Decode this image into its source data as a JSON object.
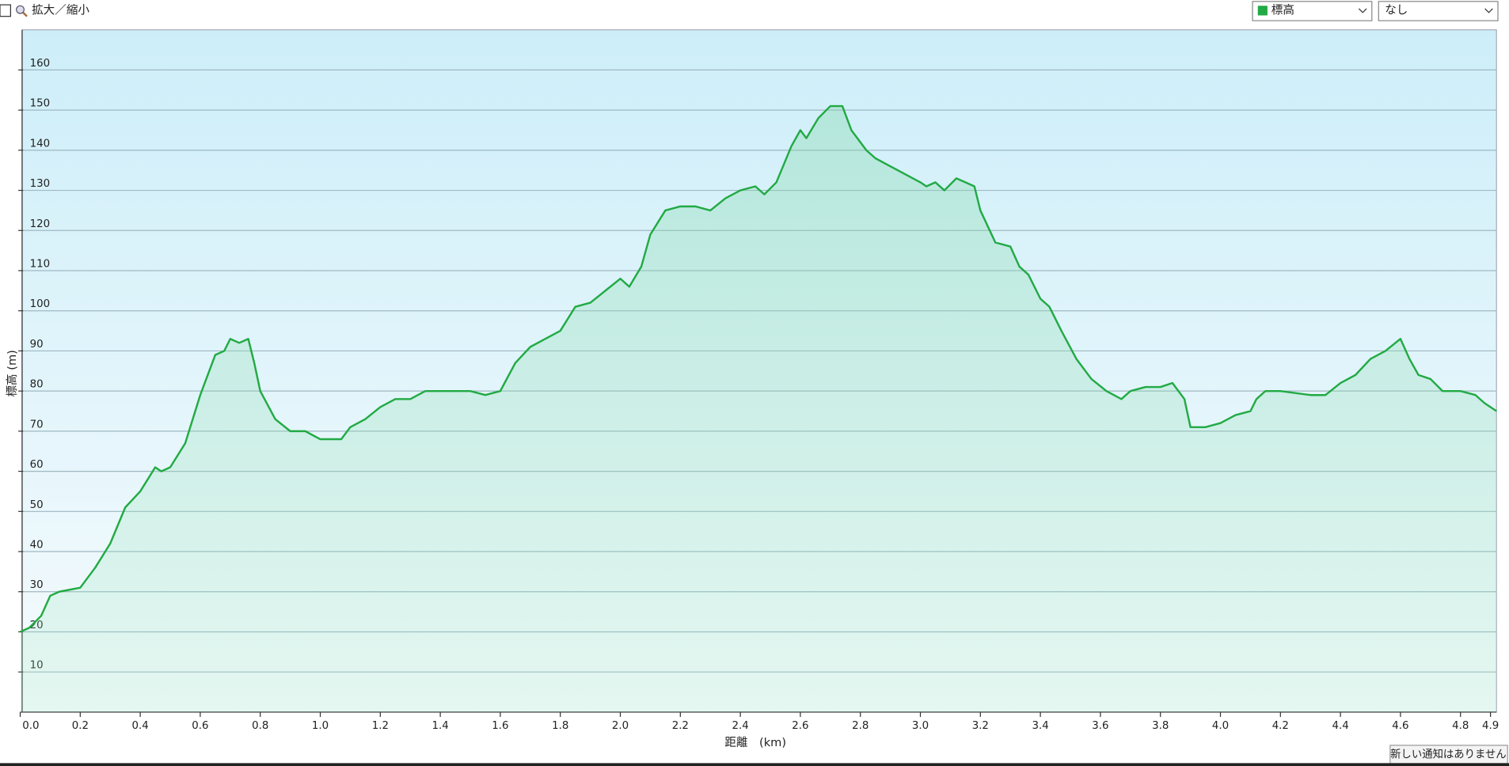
{
  "controls": {
    "zoom_label": "拡大／縮小",
    "overlay_select": "なし"
  },
  "notification": "新しい通知はありません",
  "chart_data": {
    "type": "area",
    "xlabel": "距離　(km)",
    "ylabel": "標高 (m)",
    "xlim": [
      0,
      4.92
    ],
    "ylim": [
      0,
      170
    ],
    "xticks": [
      {
        "value": 0,
        "label": "0.0"
      },
      0.2,
      0.4,
      0.6,
      0.8,
      {
        "value": 1,
        "label": "1.0"
      },
      1.2,
      1.4,
      1.6,
      1.8,
      {
        "value": 2,
        "label": "2.0"
      },
      2.2,
      2.4,
      2.6,
      2.8,
      {
        "value": 3,
        "label": "3.0"
      },
      3.2,
      3.4,
      3.6,
      3.8,
      {
        "value": 4,
        "label": "4.0"
      },
      4.2,
      4.4,
      4.6,
      4.8,
      4.9
    ],
    "yticks": [
      10,
      20,
      30,
      40,
      50,
      60,
      70,
      80,
      90,
      100,
      110,
      120,
      130,
      140,
      150,
      160
    ],
    "grid": true,
    "x": [
      0,
      0.03,
      0.07,
      0.1,
      0.13,
      0.2,
      0.25,
      0.3,
      0.35,
      0.4,
      0.45,
      0.47,
      0.5,
      0.55,
      0.6,
      0.63,
      0.65,
      0.68,
      0.7,
      0.73,
      0.76,
      0.78,
      0.8,
      0.85,
      0.9,
      0.95,
      1.0,
      1.07,
      1.1,
      1.15,
      1.2,
      1.25,
      1.3,
      1.35,
      1.4,
      1.45,
      1.5,
      1.55,
      1.6,
      1.65,
      1.7,
      1.75,
      1.8,
      1.85,
      1.9,
      1.95,
      2.0,
      2.03,
      2.07,
      2.1,
      2.15,
      2.2,
      2.25,
      2.3,
      2.35,
      2.4,
      2.45,
      2.48,
      2.52,
      2.57,
      2.6,
      2.62,
      2.66,
      2.7,
      2.74,
      2.77,
      2.82,
      2.85,
      2.9,
      2.95,
      3.0,
      3.02,
      3.05,
      3.08,
      3.12,
      3.15,
      3.18,
      3.2,
      3.25,
      3.3,
      3.33,
      3.36,
      3.4,
      3.43,
      3.47,
      3.52,
      3.57,
      3.62,
      3.67,
      3.7,
      3.75,
      3.8,
      3.84,
      3.88,
      3.9,
      3.95,
      4.0,
      4.05,
      4.1,
      4.12,
      4.15,
      4.2,
      4.3,
      4.35,
      4.4,
      4.45,
      4.5,
      4.55,
      4.6,
      4.63,
      4.66,
      4.7,
      4.74,
      4.8,
      4.85,
      4.88,
      4.92
    ],
    "series": [
      {
        "name": "標高",
        "color": "#22aa44",
        "values": [
          20,
          21,
          24,
          29,
          30,
          31,
          36,
          42,
          51,
          55,
          61,
          60,
          61,
          67,
          79,
          85,
          89,
          90,
          93,
          92,
          93,
          87,
          80,
          73,
          70,
          70,
          68,
          68,
          71,
          73,
          76,
          78,
          78,
          80,
          80,
          80,
          80,
          79,
          80,
          87,
          91,
          93,
          95,
          101,
          102,
          105,
          108,
          106,
          111,
          119,
          125,
          126,
          126,
          125,
          128,
          130,
          131,
          129,
          132,
          141,
          145,
          143,
          148,
          151,
          151,
          145,
          140,
          138,
          136,
          134,
          132,
          131,
          132,
          130,
          133,
          132,
          131,
          125,
          117,
          116,
          111,
          109,
          103,
          101,
          95,
          88,
          83,
          80,
          78,
          80,
          81,
          81,
          82,
          78,
          71,
          71,
          72,
          74,
          75,
          78,
          80,
          80,
          79,
          79,
          82,
          84,
          88,
          90,
          93,
          88,
          84,
          83,
          80,
          80,
          79,
          77,
          75
        ]
      }
    ]
  }
}
